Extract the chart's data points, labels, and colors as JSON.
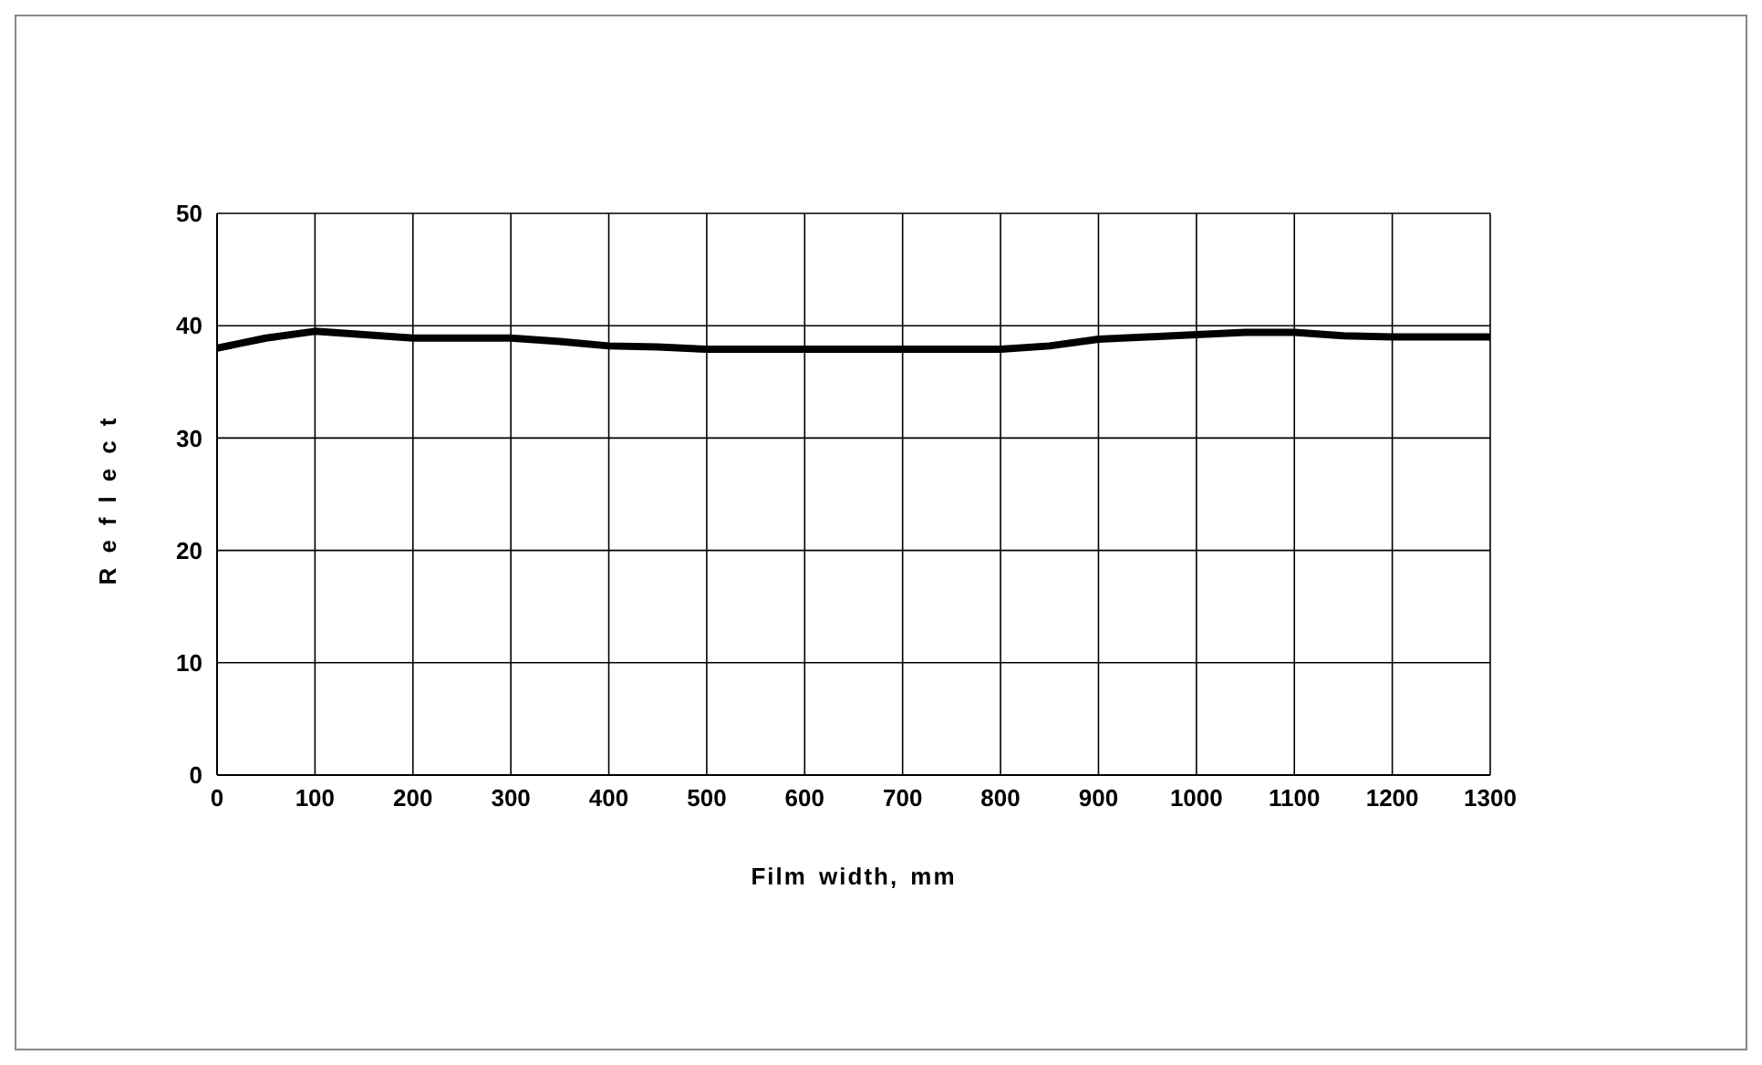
{
  "chart_data": {
    "type": "line",
    "xlabel": "Film width, mm",
    "ylabel": "Reflect",
    "x": [
      0,
      50,
      100,
      150,
      200,
      250,
      300,
      350,
      400,
      450,
      500,
      550,
      600,
      650,
      700,
      750,
      800,
      850,
      900,
      950,
      1000,
      1050,
      1100,
      1150,
      1200,
      1250,
      1300
    ],
    "series": [
      {
        "color": "#000000",
        "values": [
          38.0,
          38.9,
          39.5,
          39.2,
          38.9,
          38.9,
          38.9,
          38.6,
          38.2,
          38.1,
          37.9,
          37.9,
          37.9,
          37.9,
          37.9,
          37.9,
          37.9,
          38.2,
          38.8,
          39.0,
          39.2,
          39.4,
          39.4,
          39.1,
          39.0,
          39.0,
          39.0
        ]
      }
    ],
    "xlim": [
      0,
      1300
    ],
    "xticks": [
      0,
      100,
      200,
      300,
      400,
      500,
      600,
      700,
      800,
      900,
      1000,
      1100,
      1200,
      1300
    ],
    "ylim": [
      0,
      50
    ],
    "yticks": [
      0,
      10,
      20,
      30,
      40,
      50
    ],
    "grid": true,
    "legend": false,
    "marker": "none",
    "line_style": "solid"
  }
}
